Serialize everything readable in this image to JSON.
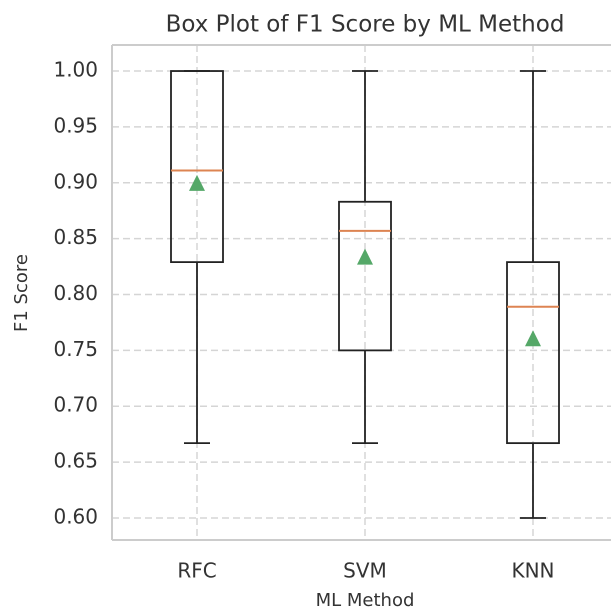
{
  "chart_data": {
    "type": "box",
    "title": "Box Plot of F1 Score by ML Method",
    "x_label": "ML Method",
    "y_label": "F1 Score",
    "categories": [
      "RFC",
      "SVM",
      "KNN"
    ],
    "whislo": [
      0.667,
      0.667,
      0.6
    ],
    "q1": [
      0.829,
      0.75,
      0.667
    ],
    "median": [
      0.911,
      0.857,
      0.789
    ],
    "q3": [
      1.0,
      0.883,
      0.829
    ],
    "whishi": [
      1.0,
      1.0,
      1.0
    ],
    "mean": [
      0.899,
      0.833,
      0.76
    ],
    "median_color": "#dd8452",
    "mean_color": "#55a868",
    "box_color": "#222222",
    "ylim": [
      0.5803,
      1.0233
    ],
    "yticks": [
      {
        "value": 0.6,
        "label": "0.60"
      },
      {
        "value": 0.65,
        "label": "0.65"
      },
      {
        "value": 0.7,
        "label": "0.70"
      },
      {
        "value": 0.75,
        "label": "0.75"
      },
      {
        "value": 0.8,
        "label": "0.80"
      },
      {
        "value": 0.85,
        "label": "0.85"
      },
      {
        "value": 0.9,
        "label": "0.90"
      },
      {
        "value": 0.95,
        "label": "0.95"
      },
      {
        "value": 1.0,
        "label": "1.00"
      }
    ],
    "grid": true
  }
}
